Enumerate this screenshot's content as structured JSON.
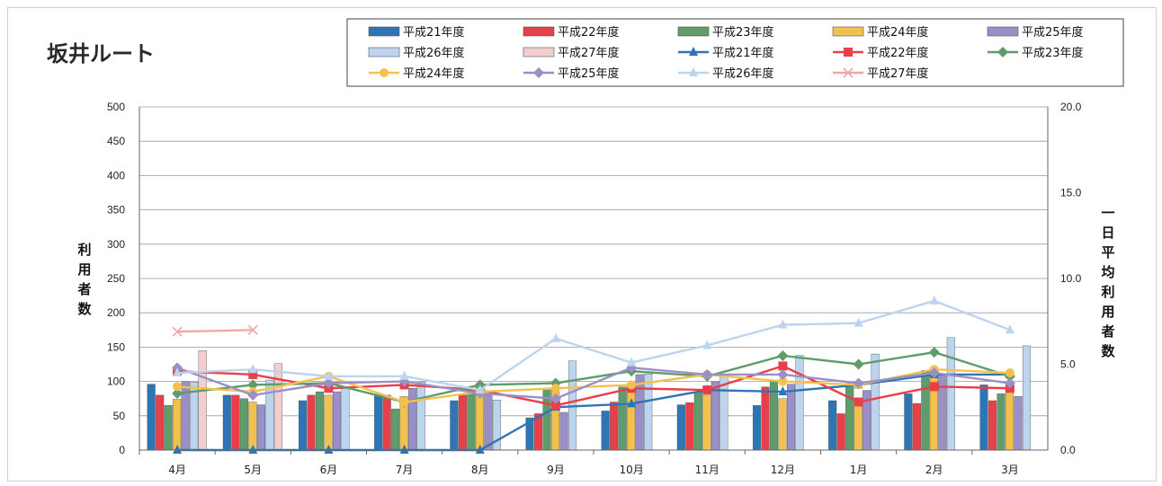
{
  "chart_data": {
    "type": "bar",
    "title": "坂井ルート",
    "ylabel": "利用者数",
    "y2label": "一日平均利用者数",
    "ylim": [
      0,
      500
    ],
    "yticks": [
      0,
      50,
      100,
      150,
      200,
      250,
      300,
      350,
      400,
      450,
      500
    ],
    "y2lim": [
      0.0,
      20.0
    ],
    "y2ticks": [
      "0.0",
      "5.0",
      "10.0",
      "15.0",
      "20.0"
    ],
    "grid": true,
    "legend_position": "top-right",
    "categories": [
      "4月",
      "5月",
      "6月",
      "7月",
      "8月",
      "9月",
      "10月",
      "11月",
      "12月",
      "1月",
      "2月",
      "3月"
    ],
    "bar_series": [
      {
        "name": "平成21年度",
        "color": "#2e75b6",
        "values": [
          96,
          80,
          72,
          80,
          72,
          47,
          57,
          66,
          65,
          72,
          82,
          95
        ]
      },
      {
        "name": "平成22年度",
        "color": "#e8404a",
        "values": [
          80,
          80,
          80,
          80,
          80,
          53,
          70,
          69,
          92,
          53,
          68,
          72
        ]
      },
      {
        "name": "平成23年度",
        "color": "#5f9b6b",
        "values": [
          65,
          75,
          85,
          60,
          88,
          90,
          92,
          85,
          102,
          97,
          116,
          82
        ]
      },
      {
        "name": "平成24年度",
        "color": "#f2c14e",
        "values": [
          74,
          70,
          80,
          78,
          84,
          88,
          86,
          80,
          75,
          72,
          120,
          90
        ]
      },
      {
        "name": "平成25年度",
        "color": "#9a8fc6",
        "values": [
          100,
          66,
          85,
          90,
          80,
          55,
          110,
          100,
          96,
          87,
          110,
          78
        ]
      },
      {
        "name": "平成26年度",
        "color": "#bdd4ee",
        "values": [
          99,
          102,
          90,
          99,
          73,
          130,
          111,
          111,
          138,
          140,
          164,
          152
        ]
      },
      {
        "name": "平成27年度",
        "color": "#f2cfcf",
        "values": [
          145,
          126,
          null,
          null,
          null,
          null,
          null,
          null,
          null,
          null,
          null,
          null
        ]
      }
    ],
    "line_series": [
      {
        "name": "平成21年度",
        "color": "#2e75b6",
        "marker": "triangle",
        "values": [
          0.0,
          0.0,
          0.0,
          0.0,
          0.0,
          2.5,
          2.7,
          3.5,
          3.4,
          3.8,
          4.4,
          4.4
        ]
      },
      {
        "name": "平成22年度",
        "color": "#e8404a",
        "marker": "square",
        "values": [
          4.6,
          4.4,
          3.6,
          3.8,
          3.5,
          2.6,
          3.6,
          3.5,
          4.9,
          2.8,
          3.7,
          3.6
        ]
      },
      {
        "name": "平成23年度",
        "color": "#5f9b6b",
        "marker": "diamond",
        "values": [
          3.3,
          3.8,
          3.9,
          2.8,
          3.8,
          3.9,
          4.6,
          4.3,
          5.5,
          5.0,
          5.7,
          4.3
        ]
      },
      {
        "name": "平成24年度",
        "color": "#f2c14e",
        "marker": "circle",
        "values": [
          3.7,
          3.4,
          4.3,
          2.8,
          3.4,
          3.6,
          3.8,
          4.4,
          4.0,
          3.8,
          4.7,
          4.5
        ]
      },
      {
        "name": "平成25年度",
        "color": "#9a8fc6",
        "marker": "diamond",
        "values": [
          4.8,
          3.2,
          3.9,
          4.0,
          3.3,
          3.0,
          4.8,
          4.4,
          4.4,
          3.9,
          4.5,
          3.9
        ]
      },
      {
        "name": "平成26年度",
        "color": "#bdd4ee",
        "marker": "triangle",
        "values": [
          4.5,
          4.7,
          4.3,
          4.3,
          3.5,
          6.5,
          5.1,
          6.1,
          7.3,
          7.4,
          8.7,
          7.0
        ]
      },
      {
        "name": "平成27年度",
        "color": "#f2a6a6",
        "marker": "x",
        "values": [
          6.9,
          7.0,
          null,
          null,
          null,
          null,
          null,
          null,
          null,
          null,
          null,
          null
        ]
      }
    ]
  }
}
